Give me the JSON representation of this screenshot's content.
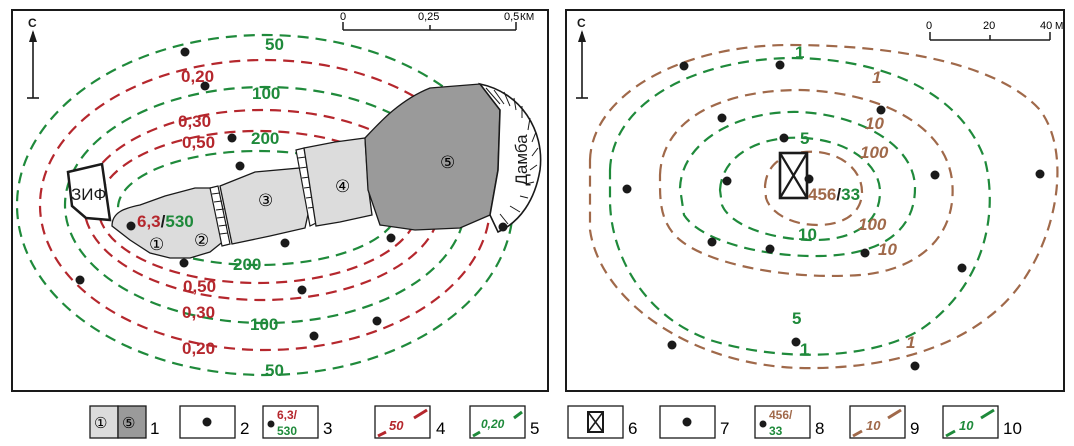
{
  "colors": {
    "red": "#b5272d",
    "green": "#1f8a3b",
    "brown": "#a0694a",
    "dark": "#1a1a1a",
    "light_gray": "#dcdcdc",
    "mid_gray": "#9a9a9a"
  },
  "left_map": {
    "north": "С",
    "scale": {
      "ticks": [
        "0",
        "0,25",
        "0,5"
      ],
      "unit": "КМ"
    },
    "zif_label": "ЗИФ",
    "dam_label": "Дамба",
    "sections": [
      "①",
      "②",
      "③",
      "④",
      "⑤"
    ],
    "red_labels": [
      "0,20",
      "0,30",
      "0,50",
      "0,50",
      "0,30",
      "0,20"
    ],
    "green_labels": [
      "50",
      "100",
      "200",
      "200",
      "100",
      "50"
    ],
    "source_value_red": "6,3",
    "source_slash": "/",
    "source_value_green": "530"
  },
  "right_map": {
    "north": "С",
    "scale": {
      "ticks": [
        "0",
        "20",
        "40"
      ],
      "unit": "М"
    },
    "brown_labels": [
      "1",
      "10",
      "100",
      "100",
      "10",
      "1"
    ],
    "green_labels": [
      "1",
      "5",
      "10",
      "5",
      "1"
    ],
    "source_value_brown": "456",
    "source_slash": "/",
    "source_value_green": "33"
  },
  "legend": [
    {
      "num": "1",
      "sample_a": "①",
      "sample_b": "⑤"
    },
    {
      "num": "2"
    },
    {
      "num": "3",
      "top": "6,3/",
      "bottom": "530"
    },
    {
      "num": "4",
      "sample": "50"
    },
    {
      "num": "5",
      "sample": "0,20"
    },
    {
      "num": "6"
    },
    {
      "num": "7"
    },
    {
      "num": "8",
      "top": "456/",
      "bottom": "33"
    },
    {
      "num": "9",
      "sample": "10"
    },
    {
      "num": "10",
      "sample": "10"
    }
  ]
}
